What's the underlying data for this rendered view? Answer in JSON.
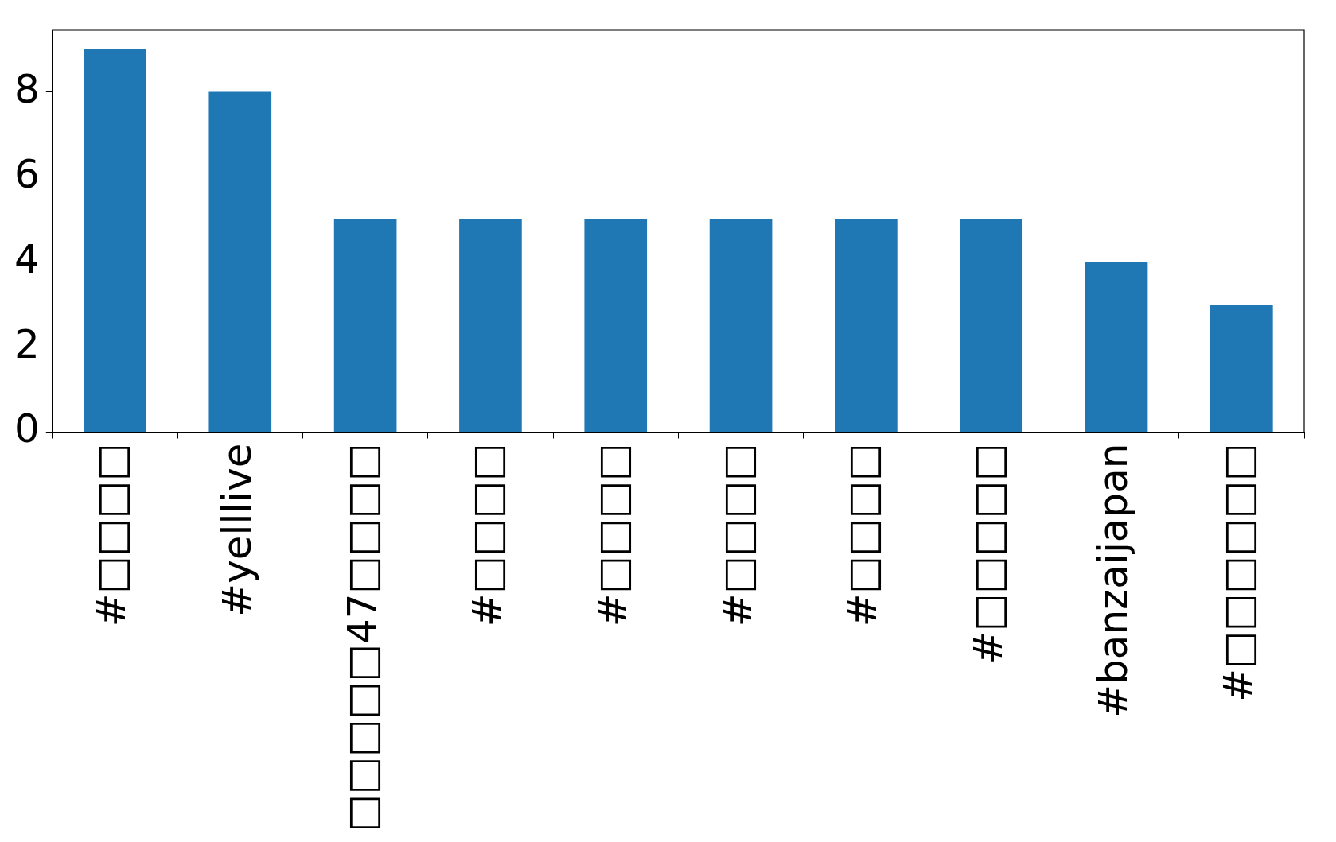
{
  "chart_data": {
    "type": "bar",
    "categories": [
      "#□□□□",
      "#yelllive",
      "□□□□□47□□□□",
      "#□□□□",
      "#□□□□",
      "#□□□□",
      "#□□□□",
      "#□□□□□",
      "#banzaijapan",
      "#□□□□□□"
    ],
    "values": [
      9,
      8,
      5,
      5,
      5,
      5,
      5,
      5,
      4,
      3
    ],
    "color": "#1f77b4",
    "ylim": [
      0,
      9.45
    ],
    "yticks": [
      0,
      2,
      4,
      6,
      8
    ],
    "grid": false,
    "legend": false
  }
}
